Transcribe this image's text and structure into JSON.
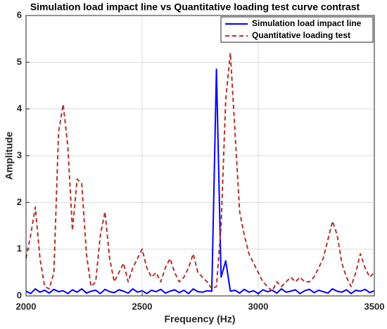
{
  "chart_data": {
    "type": "line",
    "title": "Simulation load impact line vs Quantitative loading test curve contrast",
    "x_label": "Frequency (Hz)",
    "y_label": "Amplitude",
    "x": [
      2000,
      2020,
      2040,
      2060,
      2080,
      2100,
      2120,
      2140,
      2160,
      2180,
      2200,
      2220,
      2240,
      2260,
      2280,
      2300,
      2320,
      2340,
      2360,
      2380,
      2400,
      2420,
      2440,
      2460,
      2480,
      2500,
      2520,
      2540,
      2560,
      2580,
      2600,
      2620,
      2640,
      2660,
      2680,
      2700,
      2720,
      2740,
      2760,
      2780,
      2800,
      2820,
      2840,
      2860,
      2880,
      2900,
      2920,
      2940,
      2960,
      2980,
      3000,
      3020,
      3040,
      3060,
      3080,
      3100,
      3120,
      3140,
      3160,
      3180,
      3200,
      3220,
      3240,
      3260,
      3280,
      3300,
      3320,
      3340,
      3360,
      3380,
      3400,
      3420,
      3440,
      3460,
      3480,
      3500
    ],
    "series": [
      {
        "name": "Simulation load impact line",
        "color": "#0000ff",
        "dash": false,
        "values": [
          0.1,
          0.05,
          0.15,
          0.08,
          0.12,
          0.06,
          0.14,
          0.09,
          0.11,
          0.05,
          0.13,
          0.08,
          0.15,
          0.06,
          0.1,
          0.12,
          0.05,
          0.14,
          0.09,
          0.07,
          0.13,
          0.1,
          0.06,
          0.15,
          0.08,
          0.11,
          0.05,
          0.12,
          0.09,
          0.14,
          0.06,
          0.1,
          0.13,
          0.07,
          0.12,
          0.05,
          0.15,
          0.09,
          0.08,
          0.11,
          0.1,
          4.85,
          0.4,
          0.75,
          0.1,
          0.12,
          0.06,
          0.14,
          0.08,
          0.11,
          0.05,
          0.13,
          0.09,
          0.12,
          0.06,
          0.15,
          0.08,
          0.1,
          0.13,
          0.05,
          0.11,
          0.14,
          0.07,
          0.12,
          0.09,
          0.06,
          0.15,
          0.1,
          0.08,
          0.13,
          0.05,
          0.12,
          0.1,
          0.14,
          0.07,
          0.11
        ]
      },
      {
        "name": "Quantitative loading test",
        "color": "#b5322a",
        "dash": true,
        "values": [
          0.8,
          1.3,
          1.9,
          0.8,
          0.2,
          0.15,
          0.5,
          3.5,
          4.1,
          3.2,
          1.4,
          2.5,
          2.4,
          0.9,
          0.2,
          0.3,
          1.3,
          1.8,
          0.8,
          0.3,
          0.5,
          0.7,
          0.3,
          0.6,
          0.8,
          1.0,
          0.6,
          0.4,
          0.5,
          0.3,
          0.6,
          0.8,
          0.5,
          0.3,
          0.4,
          0.6,
          0.9,
          0.5,
          0.4,
          0.3,
          0.15,
          0.2,
          1.5,
          4.2,
          5.2,
          3.5,
          1.8,
          1.3,
          0.9,
          0.7,
          0.5,
          0.3,
          0.2,
          0.1,
          0.3,
          0.2,
          0.3,
          0.4,
          0.3,
          0.4,
          0.3,
          0.3,
          0.4,
          0.6,
          0.8,
          1.2,
          1.6,
          1.3,
          0.7,
          0.4,
          0.2,
          0.5,
          0.9,
          0.6,
          0.4,
          0.5
        ]
      }
    ],
    "xlim": [
      2000,
      3500
    ],
    "xticks": [
      2000,
      2500,
      3000,
      3500
    ],
    "ylim": [
      0,
      6
    ],
    "yticks": [
      0,
      1,
      2,
      3,
      4,
      5,
      6
    ],
    "grid": true,
    "legend": "upper right"
  }
}
